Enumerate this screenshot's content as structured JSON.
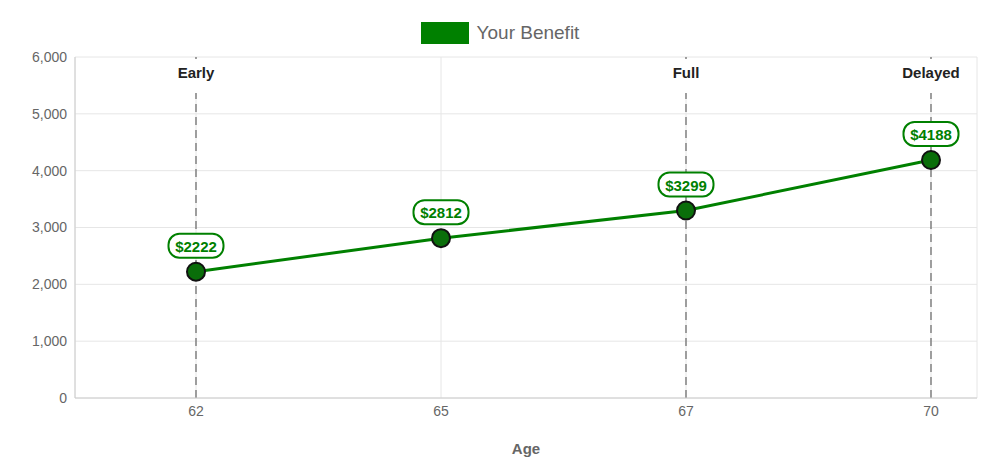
{
  "chart_data": {
    "type": "line",
    "x_label": "Age",
    "categories": [
      "62",
      "65",
      "67",
      "70"
    ],
    "series": [
      {
        "name": "Your Benefit",
        "color": "#008000",
        "values": [
          2222,
          2812,
          3299,
          4188
        ],
        "value_labels": [
          "$2222",
          "$2812",
          "$3299",
          "$4188"
        ],
        "marker": "circle"
      }
    ],
    "ylim": [
      0,
      6000
    ],
    "yticks": [
      0,
      {
        "value": 1000,
        "label": "1,000"
      },
      {
        "value": 2000,
        "label": "2,000"
      },
      {
        "value": 3000,
        "label": "3,000"
      },
      {
        "value": 4000,
        "label": "4,000"
      },
      {
        "value": 5000,
        "label": "5,000"
      },
      {
        "value": 6000,
        "label": "6,000"
      }
    ],
    "annotations": [
      {
        "x": "62",
        "label": "Early"
      },
      {
        "x": "67",
        "label": "Full"
      },
      {
        "x": "70",
        "label": "Delayed"
      }
    ],
    "grid": true,
    "legend": "top",
    "data_labels": true
  }
}
